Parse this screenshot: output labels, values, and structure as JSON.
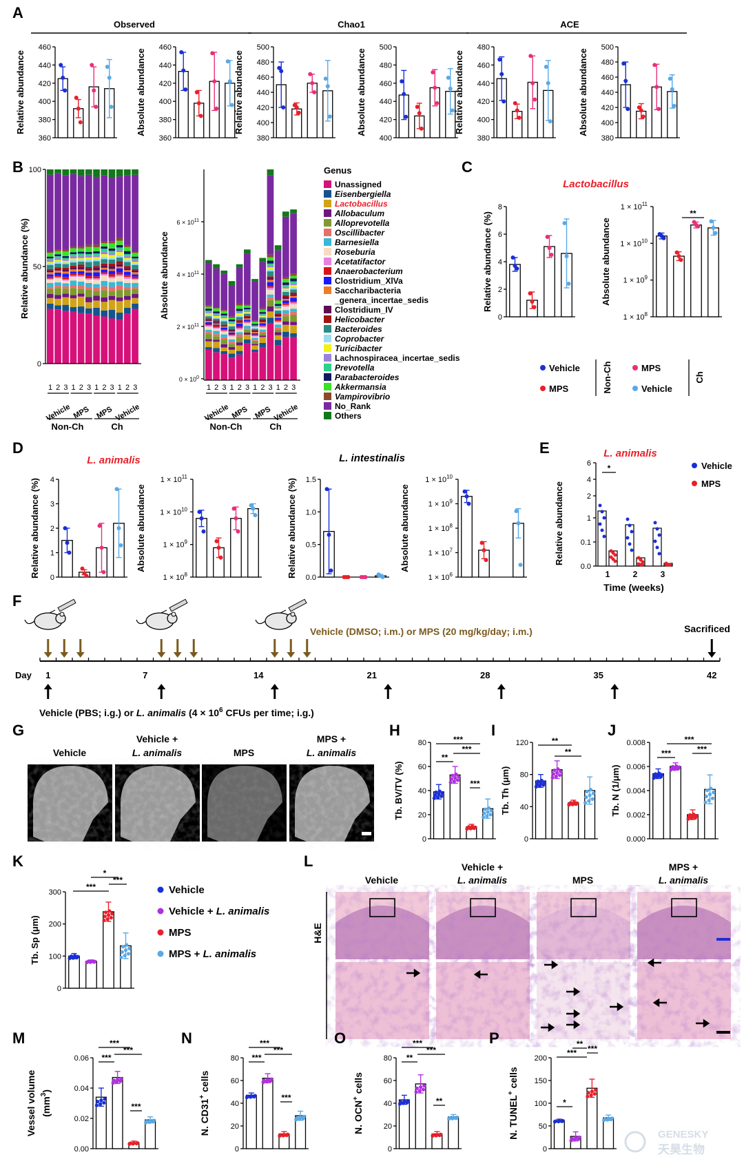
{
  "colors": {
    "vehicle": "#1a2fd6",
    "mps": "#e8202a",
    "mps_ch": "#e8307a",
    "vehicle_ch": "#5aa9e6",
    "vla": "#b030e0",
    "brown": "#7a5a1e"
  },
  "panelA": {
    "letter": "A",
    "groups": [
      "Observed",
      "Chao1",
      "ACE"
    ],
    "ylabel_rel": "Relative abundance",
    "ylabel_abs": "Absolute abundance",
    "charts": [
      {
        "ticks": [
          "460",
          "440",
          "420",
          "400",
          "380",
          "360"
        ],
        "min": 360,
        "max": 460,
        "means": [
          425,
          392,
          416,
          414
        ],
        "sd": [
          13,
          10,
          22,
          32
        ],
        "pts": [
          [
            440,
            426,
            412
          ],
          [
            404,
            392,
            377
          ],
          [
            440,
            412,
            394
          ],
          [
            438,
            426,
            394
          ]
        ]
      },
      {
        "ticks": [
          "460",
          "440",
          "420",
          "400",
          "380",
          "360"
        ],
        "min": 360,
        "max": 460,
        "means": [
          433,
          398,
          422,
          420
        ],
        "sd": [
          21,
          14,
          32,
          25
        ],
        "pts": [
          [
            454,
            434,
            413
          ],
          [
            410,
            398,
            384
          ],
          [
            453,
            422,
            392
          ],
          [
            444,
            422,
            396
          ]
        ]
      },
      {
        "ticks": [
          "500",
          "480",
          "460",
          "440",
          "420",
          "400",
          "380"
        ],
        "min": 380,
        "max": 500,
        "means": [
          450,
          418,
          452,
          442
        ],
        "sd": [
          30,
          8,
          12,
          40
        ],
        "pts": [
          [
            472,
            468,
            420
          ],
          [
            423,
            420,
            413
          ],
          [
            464,
            452,
            440
          ],
          [
            458,
            448,
            408
          ]
        ]
      },
      {
        "ticks": [
          "500",
          "480",
          "460",
          "440",
          "420",
          "400"
        ],
        "min": 400,
        "max": 500,
        "means": [
          447,
          424,
          455,
          451
        ],
        "sd": [
          27,
          14,
          20,
          25
        ],
        "pts": [
          [
            462,
            448,
            423
          ],
          [
            434,
            427,
            410
          ],
          [
            472,
            455,
            438
          ],
          [
            466,
            454,
            430
          ]
        ]
      },
      {
        "ticks": [
          "480",
          "460",
          "440",
          "420",
          "400",
          "380"
        ],
        "min": 380,
        "max": 480,
        "means": [
          445,
          409,
          441,
          432
        ],
        "sd": [
          24,
          8,
          29,
          33
        ],
        "pts": [
          [
            466,
            450,
            420
          ],
          [
            418,
            410,
            402
          ],
          [
            470,
            440,
            422
          ],
          [
            458,
            440,
            398
          ]
        ]
      },
      {
        "ticks": [
          "500",
          "480",
          "460",
          "440",
          "420",
          "400",
          "380"
        ],
        "min": 380,
        "max": 500,
        "means": [
          450,
          415,
          447,
          441
        ],
        "sd": [
          30,
          10,
          30,
          22
        ],
        "pts": [
          [
            478,
            455,
            418
          ],
          [
            420,
            416,
            408
          ],
          [
            476,
            447,
            418
          ],
          [
            458,
            444,
            422
          ]
        ]
      }
    ]
  },
  "panelB": {
    "letter": "B",
    "ylabel_rel": "Relative abundance (%)",
    "ylabel_abs": "Absolute abundance",
    "ticks_rel": [
      "100",
      "50",
      "0"
    ],
    "ticks_abs": [
      "6 × 10",
      "4 × 10",
      "2 × 10",
      "0 × 10"
    ],
    "tick_abs_exp": [
      "11",
      "11",
      "11",
      "0"
    ],
    "sample_nums": [
      "1",
      "2",
      "3",
      "1",
      "2",
      "3",
      "1",
      "2",
      "3",
      "1",
      "2",
      "3"
    ],
    "groups": [
      "Vehicle",
      "MPS",
      "MPS",
      "Vehicle"
    ],
    "supergroups": [
      "Non-Ch",
      "Ch"
    ],
    "legend_title": "Genus",
    "genera": [
      {
        "name": "Unassigned",
        "color": "#d6117a",
        "italic": false
      },
      {
        "name": "Eisenbergiella",
        "color": "#16538c",
        "italic": true
      },
      {
        "name": "Lactobacillus",
        "color": "#d1a317",
        "italic": true,
        "red": true
      },
      {
        "name": "Allobaculum",
        "color": "#6e1680",
        "italic": true
      },
      {
        "name": "Alloprevotella",
        "color": "#7f9a2e",
        "italic": true
      },
      {
        "name": "Oscillibacter",
        "color": "#e8706a",
        "italic": true
      },
      {
        "name": "Barnesiella",
        "color": "#38b8d8",
        "italic": true
      },
      {
        "name": "Roseburia",
        "color": "#f5dcc2",
        "italic": true
      },
      {
        "name": "Acetatifactor",
        "color": "#e880e0",
        "italic": true
      },
      {
        "name": "Anaerobacterium",
        "color": "#d8141a",
        "italic": true
      },
      {
        "name": "Clostridium_XlVa",
        "color": "#1a1aff",
        "italic": false
      },
      {
        "name": "Saccharibacteria",
        "color": "#ee7d2a",
        "italic": false
      },
      {
        "name": "_genera_incertae_sedis",
        "color": null,
        "italic": false
      },
      {
        "name": "Clostridium_IV",
        "color": "#5e0d55",
        "italic": false
      },
      {
        "name": "Helicobacter",
        "color": "#a01414",
        "italic": true
      },
      {
        "name": "Bacteroides",
        "color": "#2a8a84",
        "italic": true
      },
      {
        "name": "Coprobacter",
        "color": "#9bdcf2",
        "italic": true
      },
      {
        "name": "Turicibacter",
        "color": "#f0f21a",
        "italic": true
      },
      {
        "name": "Lachnospiracea_incertae_sedis",
        "color": "#9a84d8",
        "italic": false
      },
      {
        "name": "Prevotella",
        "color": "#2fd08a",
        "italic": true
      },
      {
        "name": "Parabacteroides",
        "color": "#0f1a5e",
        "italic": true
      },
      {
        "name": "Akkermansia",
        "color": "#3ae02a",
        "italic": true
      },
      {
        "name": "Vampirovibrio",
        "color": "#8a4a2a",
        "italic": true
      },
      {
        "name": "No_Rank",
        "color": "#7a2aa0",
        "italic": false
      },
      {
        "name": "Others",
        "color": "#12781a",
        "italic": false
      }
    ]
  },
  "panelC": {
    "letter": "C",
    "title": "Lactobacillus",
    "ylabel_rel": "Relative abundance (%)",
    "ylabel_abs": "Absolute abundance",
    "ticks_rel": [
      "8",
      "6",
      "4",
      "2",
      "0"
    ],
    "rel_means": [
      3.8,
      1.2,
      5.1,
      4.6
    ],
    "rel_sd": [
      0.5,
      0.6,
      0.8,
      2.5
    ],
    "rel_pts": [
      [
        4.3,
        3.7,
        3.5
      ],
      [
        1.7,
        1.1,
        0.7
      ],
      [
        5.8,
        5.0,
        4.5
      ],
      [
        6.8,
        4.4,
        2.4
      ]
    ],
    "abs_ticks": [
      "1 × 10",
      "1 × 10",
      "1 × 10",
      "1 × 10"
    ],
    "abs_exp": [
      "11",
      "10",
      "9",
      "8"
    ],
    "abs_log_means": [
      10.2,
      9.65,
      10.5,
      10.42
    ],
    "abs_log_sd": [
      0.08,
      0.12,
      0.08,
      0.2
    ],
    "abs_log_pts": [
      [
        10.25,
        10.2,
        10.14
      ],
      [
        9.75,
        9.65,
        9.55
      ],
      [
        10.58,
        10.5,
        10.46
      ],
      [
        10.6,
        10.42,
        10.28
      ]
    ],
    "sig": "**",
    "legend": {
      "vehicle": "Vehicle",
      "mps": "MPS",
      "mps_ch": "MPS",
      "vehicle_ch": "Vehicle",
      "nonch": "Non-Ch",
      "ch": "Ch"
    }
  },
  "panelD": {
    "letter": "D",
    "title1": "L. animalis",
    "title2": "L. intestinalis",
    "ylabel_rel": "Relative abundance (%)",
    "ylabel_abs": "Absolute abundance",
    "ticks_rel1": [
      "4",
      "3",
      "2",
      "1",
      "0"
    ],
    "rel1_means": [
      1.5,
      0.2,
      1.2,
      2.2
    ],
    "rel1_sd": [
      0.5,
      0.1,
      1.0,
      1.4
    ],
    "rel1_pts": [
      [
        2.0,
        1.4,
        1.0
      ],
      [
        0.35,
        0.15,
        0.05
      ],
      [
        2.1,
        1.2,
        0.2
      ],
      [
        3.6,
        2.0,
        1.3
      ]
    ],
    "abs1_ticks": [
      "1 × 10",
      "1 × 10",
      "1 × 10",
      "1 × 10"
    ],
    "abs1_exp": [
      "11",
      "10",
      "9",
      "8"
    ],
    "abs1_log_means": [
      9.8,
      8.9,
      9.8,
      10.1
    ],
    "abs1_log_sd": [
      0.25,
      0.3,
      0.35,
      0.15
    ],
    "abs1_log_pts": [
      [
        10.0,
        9.8,
        9.4
      ],
      [
        9.1,
        8.9,
        8.6
      ],
      [
        10.1,
        9.8,
        9.4
      ],
      [
        10.2,
        10.1,
        9.9
      ]
    ],
    "ticks_rel2": [
      "1.5",
      "1.0",
      "0.5",
      "0.0"
    ],
    "rel2_means": [
      0.7,
      0.0,
      0.0,
      0.02
    ],
    "rel2_sd": [
      0.65,
      0,
      0,
      0.02
    ],
    "rel2_pts": [
      [
        1.35,
        0.65,
        0.1
      ],
      [
        0,
        0,
        0
      ],
      [
        0,
        0,
        0
      ],
      [
        0.04,
        0.02,
        0.0
      ]
    ],
    "abs2_ticks": [
      "1 × 10",
      "1 × 10",
      "1 × 10",
      "1 × 10",
      "1 × 10"
    ],
    "abs2_exp": [
      "10",
      "9",
      "8",
      "7",
      "6"
    ],
    "abs2_log_means": [
      9.3,
      7.1,
      0,
      8.2
    ],
    "abs2_log_sd": [
      0.25,
      0.35,
      0,
      0.6
    ],
    "abs2_log_pts": [
      [
        9.5,
        9.3,
        9.0
      ],
      [
        7.4,
        7.1,
        6.7
      ],
      [],
      [
        8.7,
        8.2,
        6.5
      ]
    ]
  },
  "panelE": {
    "letter": "E",
    "title": "L. animalis",
    "ylabel": "Relative abundance",
    "xlabel": "Time (weeks)",
    "xticks": [
      "1",
      "2",
      "3"
    ],
    "yticks_top": [
      "6",
      "4",
      "2"
    ],
    "yticks_bot": [
      "1",
      "0.1",
      "0.0"
    ],
    "sig": "*",
    "legend": [
      "Vehicle",
      "MPS"
    ]
  },
  "panelF": {
    "letter": "F",
    "day_label": "Day",
    "day_ticks": [
      "1",
      "7",
      "14",
      "21",
      "28",
      "35",
      "42"
    ],
    "top_text": "Vehicle (DMSO; i.m.) or MPS (20 mg/kg/day; i.m.)",
    "sacrificed": "Sacrificed",
    "bottom_pre": "Vehicle (PBS; i.g.) or ",
    "bottom_it": "L. animalis",
    "bottom_post1": " (4 × 10",
    "bottom_sup": "6",
    "bottom_post2": " CFUs per time; i.g.)"
  },
  "panelG": {
    "letter": "G",
    "labels": [
      [
        "Vehicle",
        ""
      ],
      [
        "Vehicle +",
        "L. animalis"
      ],
      [
        "MPS",
        ""
      ],
      [
        "MPS +",
        "L. animalis"
      ]
    ]
  },
  "panelH": {
    "letter": "H",
    "ylabel": "Tb. BV/TV (%)",
    "ticks": [
      "80",
      "60",
      "40",
      "20",
      "0"
    ],
    "max": 80,
    "means": [
      39,
      53,
      10,
      25
    ],
    "sd": [
      6,
      7,
      2,
      8
    ],
    "sigs": [
      "***",
      "**",
      "***",
      "***"
    ]
  },
  "panelI": {
    "letter": "I",
    "ylabel": "Tb. Th (μm)",
    "ticks": [
      "120",
      "80",
      "40",
      "0"
    ],
    "max": 120,
    "means": [
      72,
      86,
      45,
      60
    ],
    "sd": [
      8,
      11,
      3,
      17
    ],
    "sigs": [
      "**",
      "**"
    ]
  },
  "panelJ": {
    "letter": "J",
    "ylabel": "Tb. N (1/μm)",
    "ticks": [
      "0.008",
      "0.006",
      "0.004",
      "0.002",
      "0.000"
    ],
    "max": 0.008,
    "means": [
      0.0054,
      0.006,
      0.002,
      0.0041
    ],
    "sd": [
      0.0004,
      0.0003,
      0.0004,
      0.0012
    ],
    "sigs": [
      "***",
      "***",
      "***"
    ]
  },
  "panelK": {
    "letter": "K",
    "ylabel": "Tb. Sp (μm)",
    "ticks": [
      "300",
      "200",
      "100",
      "0"
    ],
    "max": 300,
    "means": [
      100,
      84,
      238,
      132
    ],
    "sd": [
      8,
      4,
      30,
      40
    ],
    "sigs": [
      "*",
      "***",
      "***"
    ],
    "legend": [
      {
        "a": "Vehicle",
        "b": ""
      },
      {
        "a": "Vehicle + ",
        "b": "L. animalis"
      },
      {
        "a": "MPS",
        "b": ""
      },
      {
        "a": "MPS + ",
        "b": "L. animalis"
      }
    ]
  },
  "panelL": {
    "letter": "L",
    "stain": "H&E",
    "labels": [
      [
        "Vehicle",
        ""
      ],
      [
        "Vehicle +",
        "L. animalis"
      ],
      [
        "MPS",
        ""
      ],
      [
        "MPS +",
        "L. animalis"
      ]
    ]
  },
  "panelM": {
    "letter": "M",
    "ylabel": "Vessel volume",
    "ylabel2": "(mm",
    "ysup": "3",
    "ylabel3": ")",
    "ticks": [
      "0.06",
      "0.04",
      "0.02",
      "0.00"
    ],
    "max": 0.06,
    "means": [
      0.034,
      0.047,
      0.004,
      0.019
    ],
    "sd": [
      0.006,
      0.004,
      0.001,
      0.002
    ],
    "sigs": [
      "***",
      "***",
      "***",
      "***"
    ]
  },
  "panelN": {
    "letter": "N",
    "ylabel_a": "N. CD31",
    "ylabel_sup": "+",
    "ylabel_b": " cells",
    "ticks": [
      "80",
      "60",
      "40",
      "20",
      "0"
    ],
    "max": 80,
    "means": [
      47,
      62,
      13,
      29
    ],
    "sd": [
      2,
      4,
      2,
      4
    ],
    "sigs": [
      "***",
      "***",
      "***",
      "***"
    ]
  },
  "panelO": {
    "letter": "O",
    "ylabel_a": "N. OCN",
    "ylabel_sup": "+",
    "ylabel_b": " cells",
    "ticks": [
      "80",
      "60",
      "40",
      "20",
      "0"
    ],
    "max": 80,
    "means": [
      43,
      57,
      13,
      28
    ],
    "sd": [
      4,
      8,
      2,
      2
    ],
    "sigs": [
      "***",
      "**",
      "***",
      "**"
    ]
  },
  "panelP": {
    "letter": "P",
    "ylabel_a": "N. TUNEL",
    "ylabel_sup": "+",
    "ylabel_b": " cells",
    "ticks": [
      "200",
      "150",
      "100",
      "50",
      "0"
    ],
    "max": 200,
    "means": [
      62,
      27,
      133,
      68
    ],
    "sd": [
      3,
      10,
      20,
      6
    ],
    "sigs": [
      "**",
      "***",
      "***",
      "*"
    ]
  },
  "watermark": {
    "en": "GENESKY",
    "cn": "天昊生物"
  }
}
